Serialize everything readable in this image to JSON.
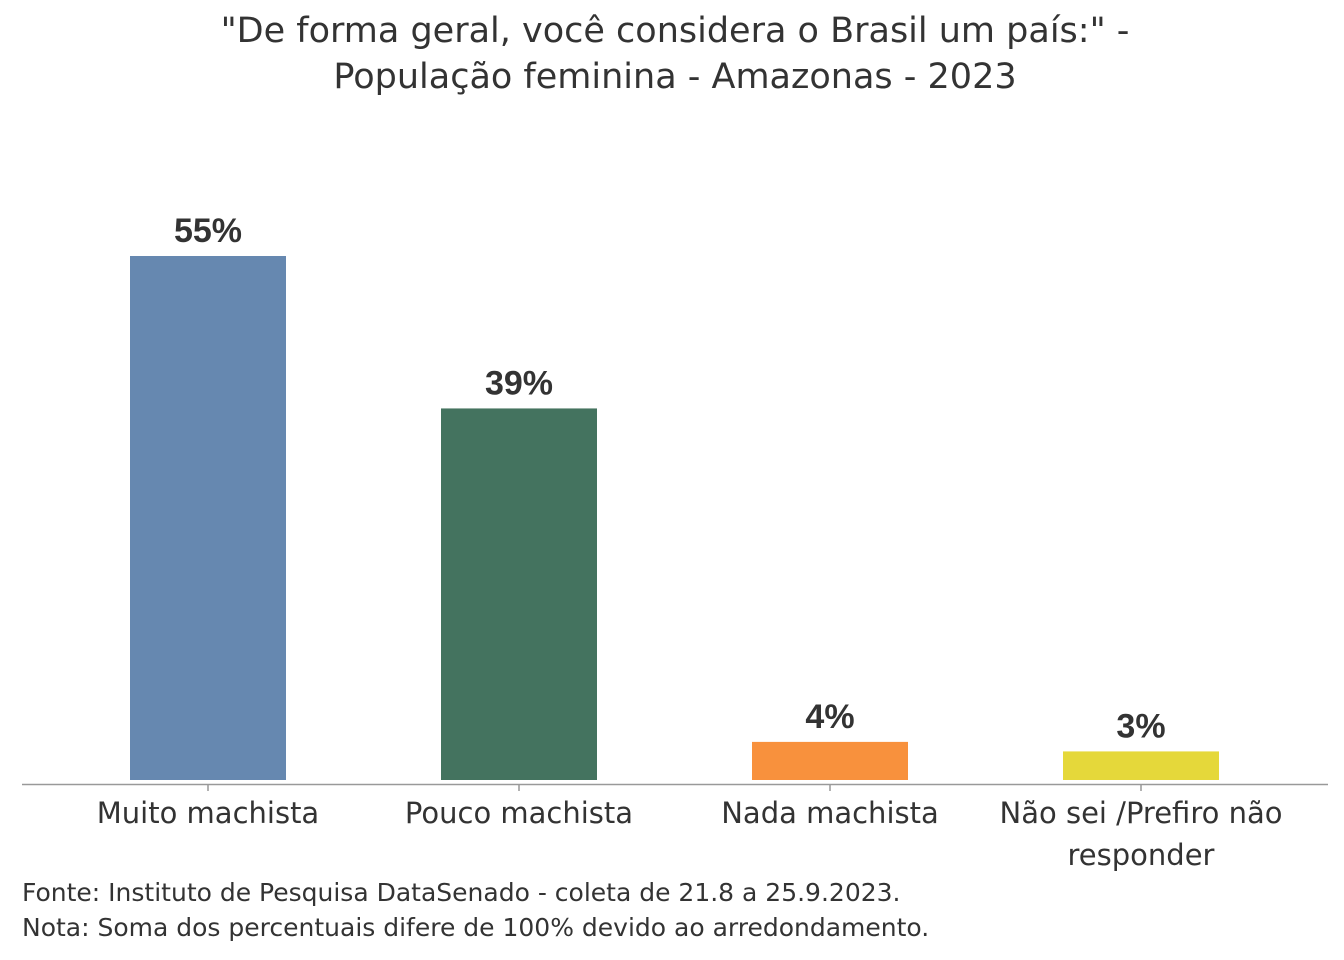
{
  "chart_data": {
    "type": "bar",
    "title_line1": "\"De forma geral, você considera o Brasil um país:\" -",
    "title_line2": "População feminina - Amazonas - 2023",
    "categories": [
      [
        "Muito machista"
      ],
      [
        "Pouco machista"
      ],
      [
        "Nada machista"
      ],
      [
        "Não sei /Prefiro não",
        "responder"
      ]
    ],
    "values": [
      55,
      39,
      4,
      3
    ],
    "labels": [
      "55%",
      "39%",
      "4%",
      "3%"
    ],
    "colors": [
      "#6688b0",
      "#44735f",
      "#f8913d",
      "#e5d83a"
    ],
    "ylim": [
      0,
      55
    ],
    "grid": false,
    "legend": "none"
  },
  "footer": {
    "source": "Fonte: Instituto de Pesquisa DataSenado - coleta de 21.8 a 25.9.2023.",
    "note": "Nota: Soma dos percentuais difere de 100% devido ao arredondamento."
  }
}
